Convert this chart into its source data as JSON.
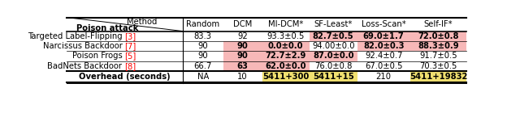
{
  "col_headers": [
    "Random",
    "DCM",
    "MI-DCM*",
    "SF-Least*",
    "Loss-Scan*",
    "Self-IF*"
  ],
  "row_header_refs": [
    "3",
    "7",
    "5",
    "8"
  ],
  "row_label_plain": [
    "Targeted Label-Flipping ",
    "Narcissus Backdoor ",
    "Poison Frogs ",
    "BadNets Backdoor "
  ],
  "overhead_row": [
    "NA",
    "10",
    "5411+300",
    "5411+15",
    "210",
    "5411+19832"
  ],
  "cell_data": [
    [
      "83.3",
      "92",
      "93.3±0.5",
      "82.7±0.5",
      "69.0±1.7",
      "72.0±0.8"
    ],
    [
      "90",
      "90",
      "0.0±0.0",
      "94.00±0.0",
      "82.0±0.3",
      "88.3±0.9"
    ],
    [
      "90",
      "90",
      "72.7±2.9",
      "87.0±0.0",
      "92.4±0.7",
      "91.7±0.5"
    ],
    [
      "66.7",
      "63",
      "62.0±0.0",
      "76.0±0.8",
      "67.0±0.5",
      "70.3±0.5"
    ]
  ],
  "cell_bold": [
    [
      false,
      false,
      false,
      true,
      true,
      true
    ],
    [
      false,
      true,
      true,
      false,
      true,
      true
    ],
    [
      false,
      true,
      true,
      true,
      false,
      false
    ],
    [
      false,
      true,
      true,
      false,
      false,
      false
    ]
  ],
  "cell_bg": [
    [
      null,
      null,
      null,
      "#f7b8b8",
      "#f7b8b8",
      "#f7b8b8"
    ],
    [
      null,
      "#f7b8b8",
      "#f7b8b8",
      null,
      "#f7b8b8",
      "#f7b8b8"
    ],
    [
      null,
      "#f7b8b8",
      "#f7b8b8",
      "#f7b8b8",
      null,
      null
    ],
    [
      null,
      "#f7b8b8",
      "#f7b8b8",
      null,
      null,
      null
    ]
  ],
  "overhead_bg": [
    null,
    null,
    "#f0e070",
    "#f0e070",
    null,
    "#f0e070"
  ],
  "overhead_bold": [
    false,
    false,
    true,
    true,
    false,
    true
  ],
  "col_x_starts": [
    3,
    187,
    251,
    313,
    388,
    464,
    548,
    638
  ],
  "row_y_tops": [
    3,
    25,
    41,
    57,
    73,
    89,
    107,
    127,
    145
  ],
  "bg_color": "#ffffff",
  "font_size": 7.2
}
